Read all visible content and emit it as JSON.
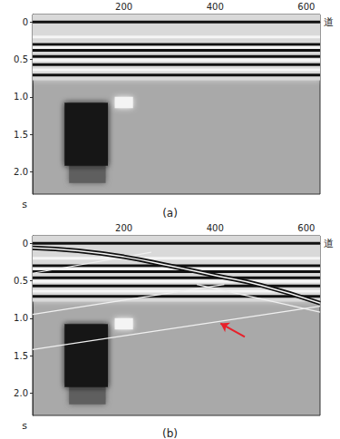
{
  "chart_data": [
    {
      "type": "seismic",
      "subtitle": "(a)",
      "x_label": "道",
      "y_label": "s",
      "xlim": [
        0,
        630
      ],
      "xticks": [
        200,
        400,
        600
      ],
      "ylim": [
        -0.1,
        2.3
      ],
      "yticks": [
        0,
        0.5,
        {
          "value": 1,
          "label": "1.0"
        },
        1.5,
        {
          "value": 2,
          "label": "2.0"
        }
      ],
      "series": [
        {
          "type": "box",
          "color": "#d9d9d9",
          "x": [
            0,
            630
          ],
          "values": [
            -0.1,
            0.78
          ]
        },
        {
          "type": "line",
          "color": "#111111",
          "x": [
            0,
            630
          ],
          "values": [
            0.0,
            0.0
          ]
        },
        {
          "type": "line",
          "color": "#f5f5f5",
          "x": [
            0,
            630
          ],
          "values": [
            0.2,
            0.2
          ]
        },
        {
          "type": "line",
          "color": "#111111",
          "x": [
            0,
            630
          ],
          "values": [
            0.3,
            0.3
          ]
        },
        {
          "type": "line",
          "color": "#f5f5f5",
          "x": [
            0,
            630
          ],
          "values": [
            0.34,
            0.34
          ]
        },
        {
          "type": "line",
          "color": "#111111",
          "x": [
            0,
            630
          ],
          "values": [
            0.38,
            0.38
          ]
        },
        {
          "type": "line",
          "color": "#111111",
          "x": [
            0,
            630
          ],
          "values": [
            0.46,
            0.46
          ]
        },
        {
          "type": "line",
          "color": "#f5f5f5",
          "x": [
            0,
            630
          ],
          "values": [
            0.51,
            0.51
          ]
        },
        {
          "type": "line",
          "color": "#111111",
          "x": [
            0,
            630
          ],
          "values": [
            0.57,
            0.57
          ]
        },
        {
          "type": "line",
          "color": "#f5f5f5",
          "x": [
            0,
            630
          ],
          "values": [
            0.64,
            0.64
          ]
        },
        {
          "type": "line",
          "color": "#111111",
          "x": [
            0,
            630
          ],
          "values": [
            0.71,
            0.71
          ]
        },
        {
          "type": "box",
          "color": "#5e5e5e",
          "x": [
            80,
            160
          ],
          "values": [
            1.9,
            2.15
          ]
        },
        {
          "type": "box",
          "color": "#141414",
          "x": [
            70,
            165
          ],
          "values": [
            1.08,
            1.92
          ]
        },
        {
          "type": "box",
          "color": "#f4f4f4",
          "x": [
            180,
            220
          ],
          "values": [
            1.0,
            1.15
          ]
        }
      ]
    },
    {
      "type": "seismic",
      "subtitle": "(b)",
      "x_label": "道",
      "y_label": "s",
      "xlim": [
        0,
        630
      ],
      "xticks": [
        200,
        400,
        600
      ],
      "ylim": [
        -0.1,
        2.3
      ],
      "yticks": [
        0,
        0.5,
        {
          "value": 1,
          "label": "1.0"
        },
        1.5,
        {
          "value": 2,
          "label": "2.0"
        }
      ],
      "series": [
        {
          "type": "box",
          "color": "#d9d9d9",
          "x": [
            0,
            630
          ],
          "values": [
            -0.1,
            0.78
          ]
        },
        {
          "type": "line",
          "color": "#111111",
          "x": [
            0,
            630
          ],
          "values": [
            0.0,
            0.0
          ]
        },
        {
          "type": "line",
          "color": "#f5f5f5",
          "x": [
            0,
            630
          ],
          "values": [
            0.2,
            0.2
          ]
        },
        {
          "type": "line",
          "color": "#111111",
          "x": [
            0,
            630
          ],
          "values": [
            0.3,
            0.3
          ]
        },
        {
          "type": "line",
          "color": "#f5f5f5",
          "x": [
            0,
            630
          ],
          "values": [
            0.34,
            0.34
          ]
        },
        {
          "type": "line",
          "color": "#111111",
          "x": [
            0,
            630
          ],
          "values": [
            0.38,
            0.38
          ]
        },
        {
          "type": "line",
          "color": "#111111",
          "x": [
            0,
            630
          ],
          "values": [
            0.46,
            0.46
          ]
        },
        {
          "type": "line",
          "color": "#f5f5f5",
          "x": [
            0,
            630
          ],
          "values": [
            0.51,
            0.51
          ]
        },
        {
          "type": "line",
          "color": "#111111",
          "x": [
            0,
            630
          ],
          "values": [
            0.57,
            0.57
          ]
        },
        {
          "type": "line",
          "color": "#f5f5f5",
          "x": [
            0,
            630
          ],
          "values": [
            0.64,
            0.64
          ]
        },
        {
          "type": "line",
          "color": "#111111",
          "x": [
            0,
            630
          ],
          "values": [
            0.71,
            0.71
          ]
        },
        {
          "type": "box",
          "color": "#5e5e5e",
          "x": [
            80,
            160
          ],
          "values": [
            1.9,
            2.15
          ]
        },
        {
          "type": "box",
          "color": "#141414",
          "x": [
            70,
            165
          ],
          "values": [
            1.08,
            1.92
          ]
        },
        {
          "type": "box",
          "color": "#f4f4f4",
          "x": [
            180,
            220
          ],
          "values": [
            1.0,
            1.15
          ]
        },
        {
          "type": "line",
          "color": "#f0f0f0",
          "x": [
            0,
            260
          ],
          "values": [
            0.4,
            0.12
          ]
        },
        {
          "type": "line",
          "color": "#f0f0f0",
          "x": [
            0,
            420
          ],
          "values": [
            0.95,
            0.55
          ]
        },
        {
          "type": "line",
          "color": "#f0f0f0",
          "x": [
            360,
            630
          ],
          "values": [
            0.55,
            0.92
          ]
        },
        {
          "type": "line",
          "color": "#f0f0f0",
          "x": [
            0,
            630
          ],
          "values": [
            1.42,
            0.84
          ]
        },
        {
          "type": "line",
          "color": "#111111",
          "line_style": "double",
          "x": [
            0,
            100,
            200,
            300,
            400,
            500,
            630
          ],
          "values": [
            0.06,
            0.1,
            0.18,
            0.3,
            0.43,
            0.56,
            0.8
          ]
        },
        {
          "type": "arrow",
          "color": "#e8202a",
          "x": [
            465,
            412
          ],
          "values": [
            1.25,
            1.07
          ]
        }
      ]
    }
  ]
}
